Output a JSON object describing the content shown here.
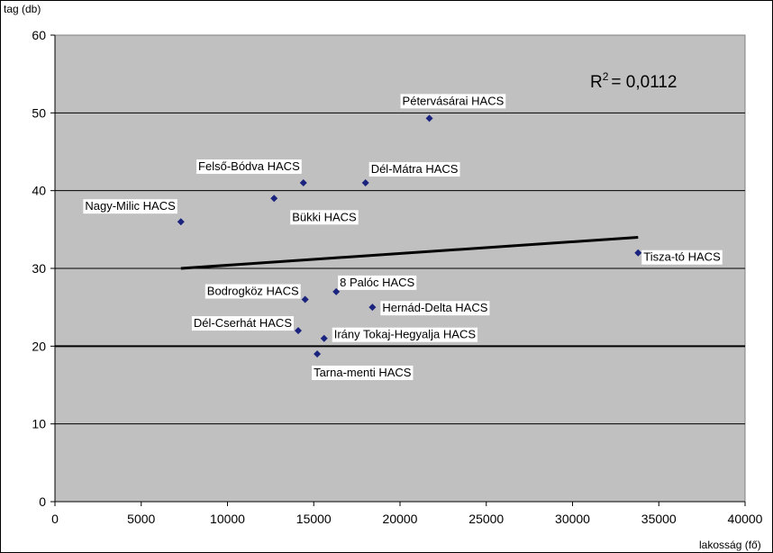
{
  "chart_data": {
    "type": "scatter",
    "xlabel": "lakosság (fő)",
    "ylabel": "tag (db)",
    "xlim": [
      0,
      40000
    ],
    "ylim": [
      0,
      60
    ],
    "x_ticks": [
      0,
      5000,
      10000,
      15000,
      20000,
      25000,
      30000,
      35000,
      40000
    ],
    "y_ticks": [
      0,
      10,
      20,
      30,
      40,
      50,
      60
    ],
    "grid": true,
    "reference_line": 20,
    "r_squared_text": "= 0,0112",
    "r_squared_symbol": "R",
    "r_squared_exp": "2",
    "points": [
      {
        "label": "Nagy-Milic HACS",
        "x": 7300,
        "y": 36
      },
      {
        "label": "Bükki HACS",
        "x": 12700,
        "y": 39
      },
      {
        "label": "Felső-Bódva HACS",
        "x": 14400,
        "y": 41
      },
      {
        "label": "Dél-Mátra HACS",
        "x": 18000,
        "y": 41
      },
      {
        "label": "Pétervásárai HACS",
        "x": 21700,
        "y": 49.3
      },
      {
        "label": "Tisza-tó HACS",
        "x": 33800,
        "y": 32
      },
      {
        "label": "8 Palóc HACS",
        "x": 16300,
        "y": 27
      },
      {
        "label": "Bodrogköz HACS",
        "x": 14500,
        "y": 26
      },
      {
        "label": "Hernád-Delta HACS",
        "x": 18400,
        "y": 25
      },
      {
        "label": "Dél-Cserhát HACS",
        "x": 14100,
        "y": 22
      },
      {
        "label": "Irány Tokaj-Hegyalja HACS",
        "x": 15600,
        "y": 21
      },
      {
        "label": "Tarna-menti HACS",
        "x": 15200,
        "y": 19
      }
    ],
    "trendline": {
      "x": [
        7300,
        33800
      ],
      "y": [
        30,
        34
      ]
    },
    "colors": {
      "plot_bg": "#c0c0c0",
      "marker": "#1a237e",
      "line": "#000000"
    }
  }
}
